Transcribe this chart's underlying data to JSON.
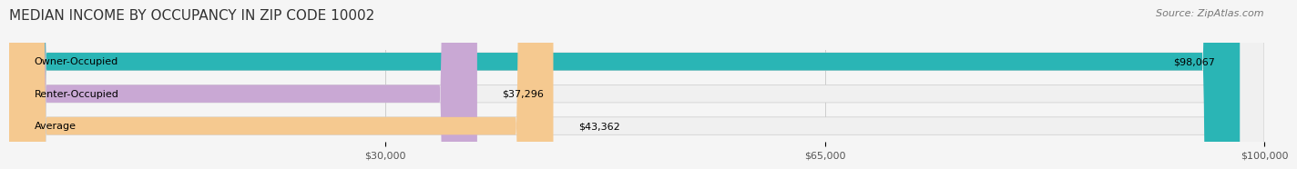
{
  "title": "MEDIAN INCOME BY OCCUPANCY IN ZIP CODE 10002",
  "source": "Source: ZipAtlas.com",
  "categories": [
    "Owner-Occupied",
    "Renter-Occupied",
    "Average"
  ],
  "values": [
    98067,
    37296,
    43362
  ],
  "bar_colors": [
    "#2ab5b5",
    "#c9a8d4",
    "#f5c990"
  ],
  "bar_bg_color": "#f0f0f0",
  "label_color": "#333333",
  "value_labels": [
    "$98,067",
    "$37,296",
    "$43,362"
  ],
  "xlim": [
    0,
    100000
  ],
  "xticks": [
    30000,
    65000,
    100000
  ],
  "xtick_labels": [
    "$30,000",
    "$65,000",
    "$100,000"
  ],
  "title_fontsize": 11,
  "source_fontsize": 8,
  "bar_label_fontsize": 8,
  "value_label_fontsize": 8,
  "background_color": "#f5f5f5",
  "bar_height": 0.55,
  "bar_bg_alpha": 1.0
}
